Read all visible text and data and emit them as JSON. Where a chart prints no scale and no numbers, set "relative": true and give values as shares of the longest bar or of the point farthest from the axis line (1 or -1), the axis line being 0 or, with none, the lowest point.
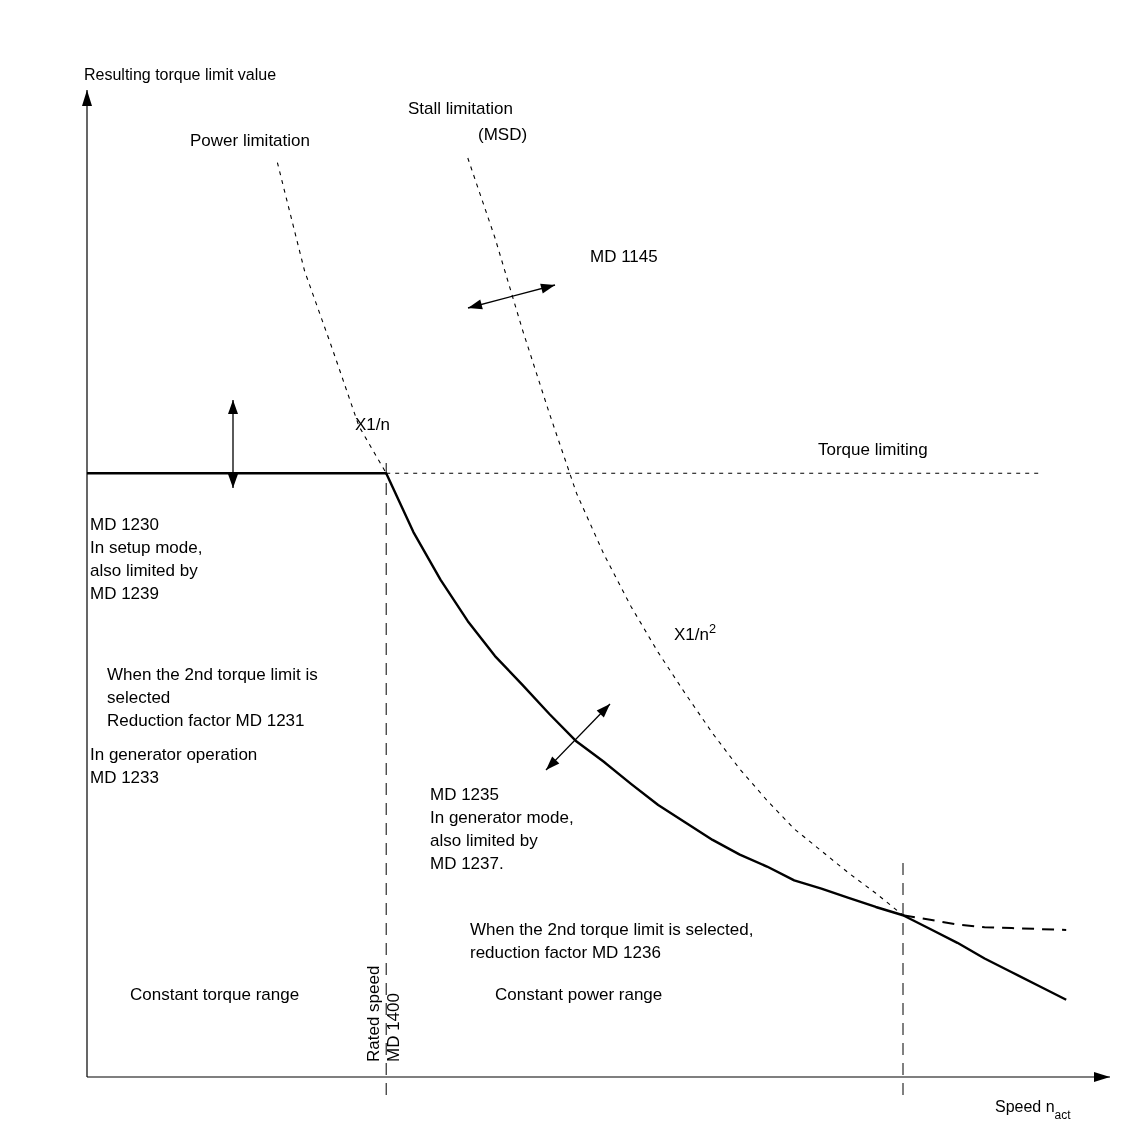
{
  "chart_data": {
    "type": "line",
    "relative": true,
    "ylabel": "Resulting torque limit value",
    "xlabel": "Speed n$_{act}$",
    "categories": [
      null,
      null,
      null,
      null,
      null,
      null,
      null,
      null,
      null,
      null,
      null,
      null,
      null,
      null,
      null,
      null,
      null,
      null,
      null,
      null,
      null,
      null,
      null,
      null,
      null,
      null,
      null,
      null,
      null,
      null,
      null,
      null,
      null,
      null,
      null,
      null,
      null,
      null
    ],
    "series": [
      {
        "color": "#000000",
        "line_style": "solid",
        "values": [
          0.657,
          0.657,
          0.657,
          0.657,
          0.657,
          0.657,
          0.657,
          0.657,
          0.657,
          0.657,
          0.657,
          0.657,
          0.593,
          0.541,
          0.496,
          0.458,
          0.427,
          0.395,
          0.365,
          0.343,
          0.319,
          0.296,
          0.277,
          0.258,
          0.242,
          0.229,
          0.214,
          0.205,
          0.195,
          0.185,
          0.176,
          0.161,
          0.146,
          0.129,
          0.114,
          0.099,
          0.084,
          null
        ]
      },
      {
        "name": "Power limitation",
        "color": "#000000",
        "line_style": "dotted",
        "values": [
          null,
          null,
          null,
          null,
          null,
          null,
          null,
          0.995,
          0.877,
          0.794,
          0.708,
          0.657,
          null,
          null,
          null,
          null,
          null,
          null,
          null,
          null,
          null,
          null,
          null,
          null,
          null,
          null,
          null,
          null,
          null,
          null,
          null,
          null,
          null,
          null,
          null,
          null,
          null,
          null
        ]
      },
      {
        "name": "Stall limitation\n(MSD)",
        "color": "#000000",
        "line_style": "dotted",
        "values": [
          null,
          null,
          null,
          null,
          null,
          null,
          null,
          null,
          null,
          null,
          null,
          null,
          null,
          null,
          1.0,
          0.913,
          0.814,
          0.722,
          0.635,
          0.569,
          0.512,
          0.462,
          0.417,
          0.374,
          0.335,
          0.301,
          0.27,
          0.246,
          0.222,
          0.2,
          0.176,
          null,
          null,
          null,
          null,
          null,
          null,
          null
        ]
      },
      {
        "name": "Torque limiting",
        "color": "#000000",
        "line_style": "dotted",
        "values": [
          null,
          null,
          null,
          null,
          null,
          null,
          null,
          null,
          null,
          null,
          null,
          0.657,
          0.657,
          0.657,
          0.657,
          0.657,
          0.657,
          0.657,
          0.657,
          0.657,
          0.657,
          0.657,
          0.657,
          0.657,
          0.657,
          0.657,
          0.657,
          0.657,
          0.657,
          0.657,
          0.657,
          0.657,
          0.657,
          0.657,
          0.657,
          0.657,
          null,
          null
        ]
      },
      {
        "color": "#000000",
        "line_style": "dashed",
        "values": [
          null,
          null,
          null,
          null,
          null,
          null,
          null,
          null,
          null,
          null,
          null,
          null,
          null,
          null,
          null,
          null,
          null,
          null,
          null,
          null,
          null,
          null,
          null,
          null,
          null,
          null,
          null,
          null,
          null,
          null,
          0.176,
          0.171,
          0.166,
          0.163,
          0.162,
          0.161,
          0.16,
          null
        ]
      }
    ],
    "annotations": [
      "X1/n",
      "MD 1145",
      "X1/n$^{2}$",
      "MD 1230\nIn setup mode,\nalso limited by\nMD 1239",
      "When the 2nd torque limit is\nselected\nReduction factor MD 1231",
      "In generator operation\nMD 1233",
      "MD 1235\nIn generator mode,\nalso limited by\nMD 1237.",
      "When the 2nd torque limit is selected,\nreduction factor MD 1236",
      "Constant torque range",
      "Constant power range",
      "Rated speed\nMD 1400"
    ]
  }
}
